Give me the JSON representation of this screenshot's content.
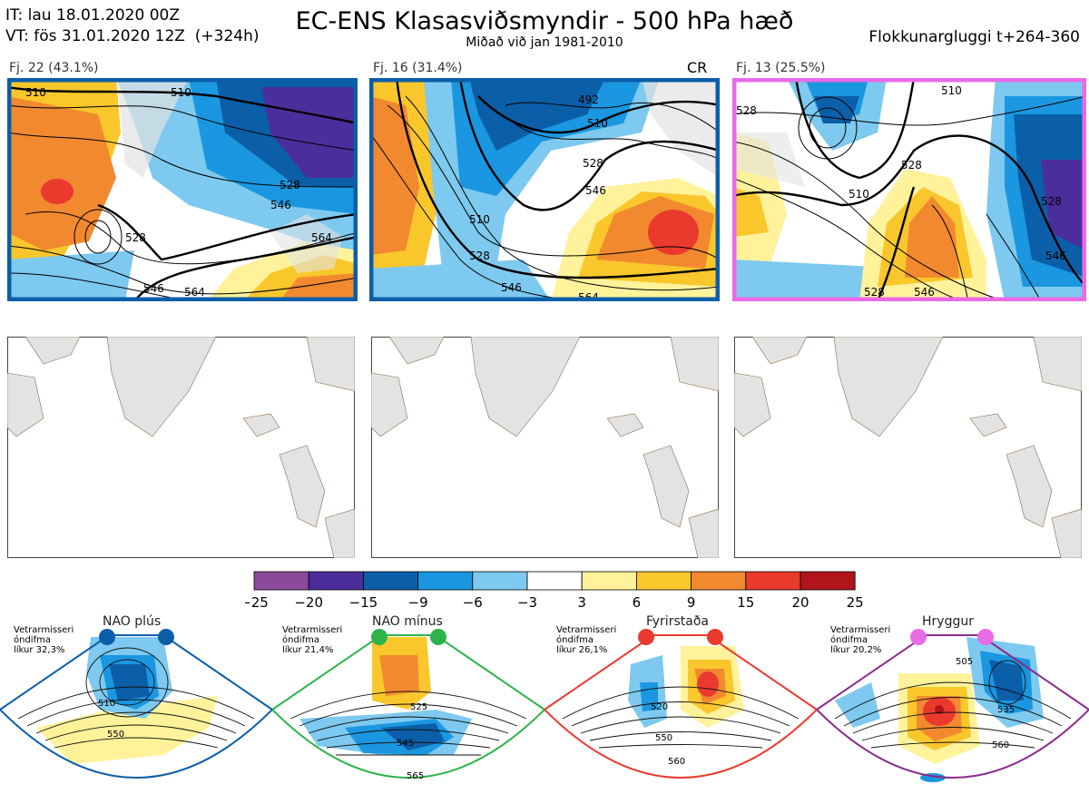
{
  "header": {
    "it_line": "IT: lau 18.01.2020 00Z",
    "vt_line": "VT: fös 31.01.2020 12Z  (+324h)",
    "title": "EC-ENS Klasasviðsmyndir - 500 hPa hæð",
    "subtitle": "Miðað við jan 1981-2010",
    "window": "Flokkunargluggi t+264-360"
  },
  "panels": [
    {
      "label": "Fj. 22 (43.1%)",
      "border": "#0b5ea8",
      "tag": "",
      "contours": [
        "510",
        "528",
        "546",
        "564",
        "546",
        "564",
        "528",
        "510"
      ]
    },
    {
      "label": "Fj. 16 (31.4%)",
      "border": "#0b5ea8",
      "tag": "CR",
      "contours": [
        "492",
        "510",
        "528",
        "546",
        "564",
        "510",
        "528",
        "546"
      ]
    },
    {
      "label": "Fj. 13 (25.5%)",
      "border": "#e86be6",
      "tag": "",
      "contours": [
        "510",
        "528",
        "510",
        "528",
        "546",
        "528",
        "546",
        "528"
      ]
    }
  ],
  "colorbar": {
    "ticks": [
      "−25",
      "−20",
      "−15",
      "−9",
      "−6",
      "−3",
      "3",
      "6",
      "9",
      "15",
      "20",
      "25"
    ],
    "colors": [
      "#8b4a9a",
      "#4b2e9b",
      "#0b5ea8",
      "#1a97e0",
      "#7ec9ef",
      "#ffffff",
      "#fff29a",
      "#f9c72c",
      "#f2892f",
      "#ea3a2e",
      "#b0151c"
    ]
  },
  "regimes": [
    {
      "name": "NAO plús",
      "info": [
        "Vetrarmisseri",
        "óndifma",
        "líkur 32,3%"
      ],
      "dot": "#0b5ea8",
      "frame": "#0b5ea8",
      "labels": [
        "510",
        "550"
      ]
    },
    {
      "name": "NAO mínus",
      "info": [
        "Vetrarmisseri",
        "óndifma",
        "líkur 21,4%"
      ],
      "dot": "#2db34a",
      "frame": "#2db34a",
      "labels": [
        "525",
        "545",
        "565"
      ]
    },
    {
      "name": "Fyrirstaða",
      "info": [
        "Vetrarmisseri",
        "óndifma",
        "líkur 26,1%"
      ],
      "dot": "#ea3a2e",
      "frame": "#ea3a2e",
      "labels": [
        "520",
        "550",
        "560"
      ]
    },
    {
      "name": "Hryggur",
      "info": [
        "Vetrarmisseri",
        "óndifma",
        "líkur 20,2%"
      ],
      "dot": "#e86be6",
      "frame": "#8a2b8e",
      "labels": [
        "505",
        "535",
        "560"
      ]
    }
  ],
  "colors": {
    "land": "#e3e3e3",
    "coast": "#8b6a44"
  }
}
